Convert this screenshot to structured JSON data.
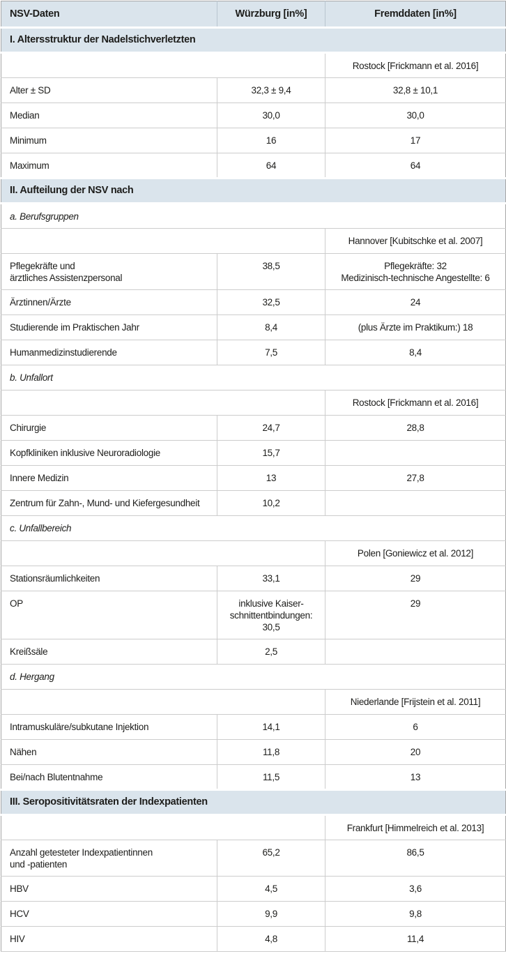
{
  "table_header": {
    "col1": "NSV-Daten",
    "col2": "Würzburg [in%]",
    "col3": "Fremddaten [in%]"
  },
  "colors": {
    "header_bg": "#dae4ec",
    "section_bg": "#dae4ec",
    "inner_border": "#cccccc",
    "outer_border": "#a6a6a6",
    "text": "#1d1d1b"
  },
  "rows": [
    {
      "kind": "section",
      "label": "I. Altersstruktur der Nadelstichverletzten"
    },
    {
      "kind": "source",
      "source": "Rostock [Frickmann et al. 2016]"
    },
    {
      "kind": "data",
      "label": "Alter ± SD",
      "wuerzburg": "32,3 ± 9,4",
      "fremd": "32,8 ± 10,1"
    },
    {
      "kind": "data",
      "label": "Median",
      "wuerzburg": "30,0",
      "fremd": "30,0"
    },
    {
      "kind": "data",
      "label": "Minimum",
      "wuerzburg": "16",
      "fremd": "17"
    },
    {
      "kind": "data",
      "label": "Maximum",
      "wuerzburg": "64",
      "fremd": "64"
    },
    {
      "kind": "section",
      "label": "II. Aufteilung der NSV nach"
    },
    {
      "kind": "subsection",
      "label": "a. Berufsgruppen"
    },
    {
      "kind": "source",
      "source": "Hannover [Kubitschke et al. 2007]"
    },
    {
      "kind": "data",
      "label": "Pflegekräfte und\närztliches Assistenzpersonal",
      "wuerzburg": "38,5",
      "fremd": "Pflegekräfte: 32\nMedizinisch-technische Angestellte: 6"
    },
    {
      "kind": "data",
      "label": "Ärztinnen/Ärzte",
      "wuerzburg": "32,5",
      "fremd": "24"
    },
    {
      "kind": "data",
      "label": "Studierende im Praktischen Jahr",
      "wuerzburg": "8,4",
      "fremd": "(plus Ärzte im Praktikum:) 18"
    },
    {
      "kind": "data",
      "label": "Humanmedizinstudierende",
      "wuerzburg": "7,5",
      "fremd": "8,4"
    },
    {
      "kind": "subsection",
      "label": "b. Unfallort"
    },
    {
      "kind": "source",
      "source": "Rostock [Frickmann et al. 2016]"
    },
    {
      "kind": "data",
      "label": "Chirurgie",
      "wuerzburg": "24,7",
      "fremd": "28,8"
    },
    {
      "kind": "data",
      "label": "Kopfkliniken inklusive Neuroradiologie",
      "wuerzburg": "15,7",
      "fremd": ""
    },
    {
      "kind": "data",
      "label": "Innere Medizin",
      "wuerzburg": "13",
      "fremd": "27,8"
    },
    {
      "kind": "data",
      "label": "Zentrum für Zahn-, Mund- und Kiefergesundheit",
      "wuerzburg": "10,2",
      "fremd": ""
    },
    {
      "kind": "subsection",
      "label": "c. Unfallbereich"
    },
    {
      "kind": "source",
      "source": "Polen [Goniewicz et al. 2012]"
    },
    {
      "kind": "data",
      "label": "Stationsräumlichkeiten",
      "wuerzburg": "33,1",
      "fremd": "29"
    },
    {
      "kind": "data",
      "label": "OP",
      "wuerzburg": "inklusive Kaiser-\nschnittentbindungen:\n30,5",
      "fremd": "29"
    },
    {
      "kind": "data",
      "label": "Kreißsäle",
      "wuerzburg": "2,5",
      "fremd": ""
    },
    {
      "kind": "subsection",
      "label": "d. Hergang"
    },
    {
      "kind": "source",
      "source": "Niederlande [Frijstein et al. 2011]"
    },
    {
      "kind": "data",
      "label": "Intramuskuläre/subkutane Injektion",
      "wuerzburg": "14,1",
      "fremd": "6"
    },
    {
      "kind": "data",
      "label": "Nähen",
      "wuerzburg": "11,8",
      "fremd": "20"
    },
    {
      "kind": "data",
      "label": "Bei/nach Blutentnahme",
      "wuerzburg": "11,5",
      "fremd": "13"
    },
    {
      "kind": "section",
      "label": "III. Seropositivitätsraten der Indexpatienten"
    },
    {
      "kind": "source",
      "source": "Frankfurt [Himmelreich et al. 2013]"
    },
    {
      "kind": "data",
      "label": "Anzahl getesteter Indexpatientinnen\nund -patienten",
      "wuerzburg": "65,2",
      "fremd": "86,5"
    },
    {
      "kind": "data",
      "label": "HBV",
      "wuerzburg": "4,5",
      "fremd": "3,6"
    },
    {
      "kind": "data",
      "label": "HCV",
      "wuerzburg": "9,9",
      "fremd": "9,8"
    },
    {
      "kind": "data",
      "label": "HIV",
      "wuerzburg": "4,8",
      "fremd": "11,4"
    }
  ]
}
